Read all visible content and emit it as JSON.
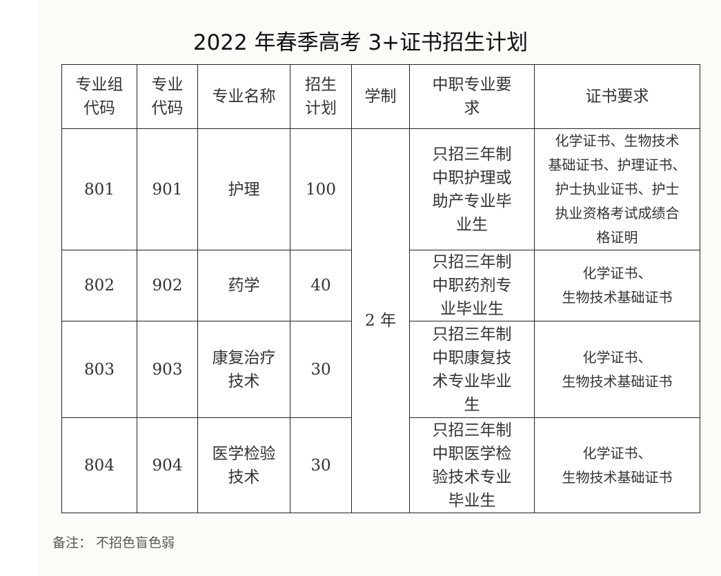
{
  "title": "2022 年春季高考 3+证书招生计划",
  "headers": [
    "专业组\n代码",
    "专业\n代码",
    "专业名称",
    "招生\n计划",
    "学制",
    "中职专业要\n求",
    "证书要求"
  ],
  "duration": "2 年",
  "rows": [
    {
      "group_code": "801",
      "major_code": "901",
      "name": "护理",
      "plan": "100",
      "requirement": "只招三年制\n中职护理或\n助产专业毕\n业生",
      "certificate": "化学证书、生物技术\n基础证书、护理证书、\n护士执业证书、护士\n执业资格考试成绩合\n格证明"
    },
    {
      "group_code": "802",
      "major_code": "902",
      "name": "药学",
      "plan": "40",
      "requirement": "只招三年制\n中职药剂专\n业毕业生",
      "certificate": "化学证书、\n生物技术基础证书"
    },
    {
      "group_code": "803",
      "major_code": "903",
      "name": "康复治疗\n技术",
      "plan": "30",
      "requirement": "只招三年制\n中职康复技\n术专业毕业\n生",
      "certificate": "化学证书、\n生物技术基础证书"
    },
    {
      "group_code": "804",
      "major_code": "904",
      "name": "医学检验\n技术",
      "plan": "30",
      "requirement": "只招三年制\n中职医学检\n验技术专业\n毕业生",
      "certificate": "化学证书、\n生物技术基础证书"
    }
  ],
  "note": "备注：  不招色盲色弱"
}
